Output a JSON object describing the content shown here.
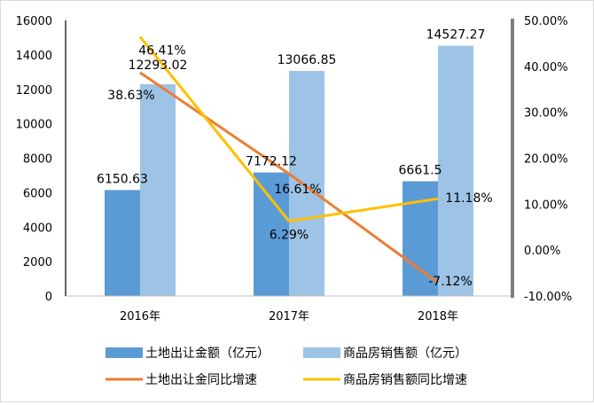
{
  "chart_data": {
    "type": "bar",
    "categories": [
      "2016年",
      "2017年",
      "2018年"
    ],
    "bar_series": [
      {
        "name": "土地出让金额（亿元）",
        "values": [
          6150.63,
          7172.12,
          6661.5
        ],
        "labels": [
          "6150.63",
          "7172.12",
          "6661.5"
        ],
        "color": "#5b9bd5"
      },
      {
        "name": "商品房销售额（亿元）",
        "values": [
          12293.02,
          13066.85,
          14527.27
        ],
        "labels": [
          "12293.02",
          "13066.85",
          "14527.27"
        ],
        "color": "#9dc3e6"
      }
    ],
    "line_series": [
      {
        "name": "土地出让金同比增速",
        "values": [
          38.63,
          16.61,
          -7.12
        ],
        "labels": [
          "38.63%",
          "16.61%",
          "-7.12%"
        ],
        "color": "#ed7d31"
      },
      {
        "name": "商品房销售额同比增速",
        "values": [
          46.41,
          6.29,
          11.18
        ],
        "labels": [
          "46.41%",
          "6.29%",
          "11.18%"
        ],
        "color": "#ffc000"
      }
    ],
    "y_left": {
      "ylim": [
        0,
        16000
      ],
      "ticks": [
        "0",
        "2000",
        "4000",
        "6000",
        "8000",
        "10000",
        "12000",
        "14000",
        "16000"
      ]
    },
    "y_right": {
      "ylim": [
        -10,
        50
      ],
      "ticks": [
        "-10.00%",
        "0.00%",
        "10.00%",
        "20.00%",
        "30.00%",
        "40.00%",
        "50.00%"
      ]
    },
    "legend_position": "bottom",
    "grid": false
  }
}
